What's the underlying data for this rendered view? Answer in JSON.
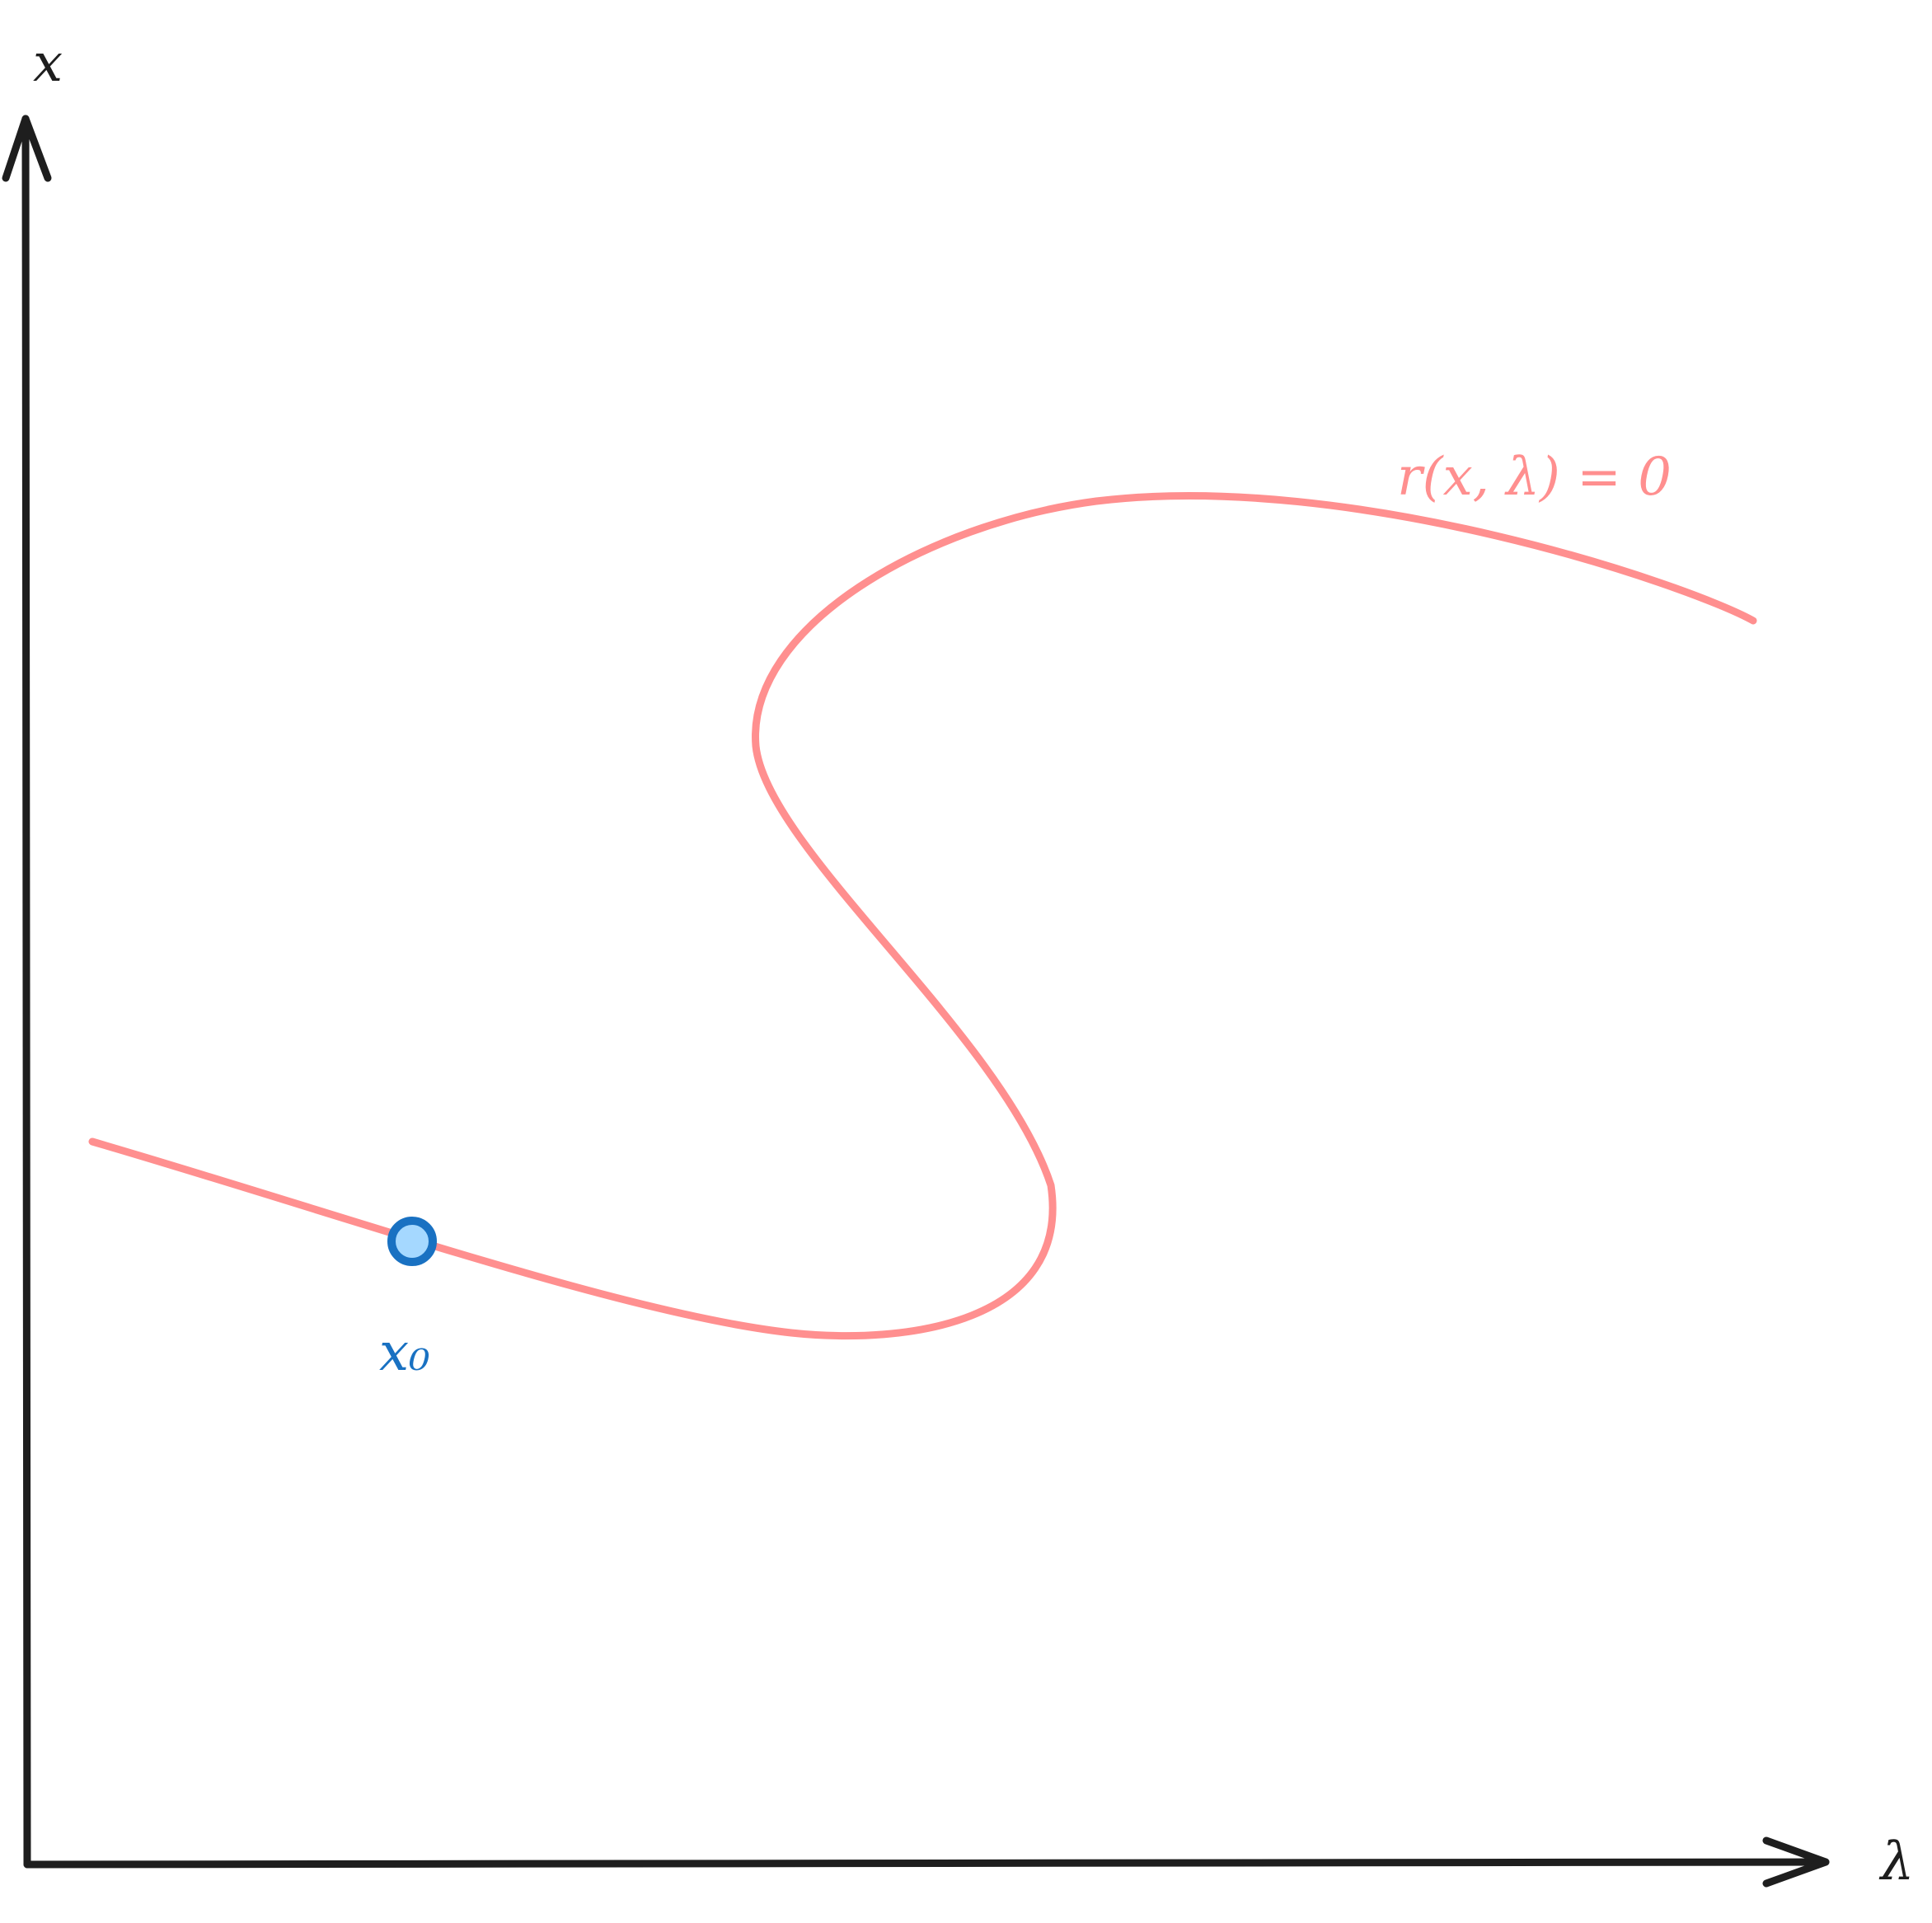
{
  "diagram": {
    "x_axis_label": "λ",
    "y_axis_label": "x",
    "curve_label": "r(x, λ) = 0",
    "point_label": "x₀",
    "colors": {
      "axis": "#1e1e1e",
      "curve": "#ff8f8f",
      "point_stroke": "#1971c2",
      "point_fill": "#a5d8ff"
    }
  }
}
